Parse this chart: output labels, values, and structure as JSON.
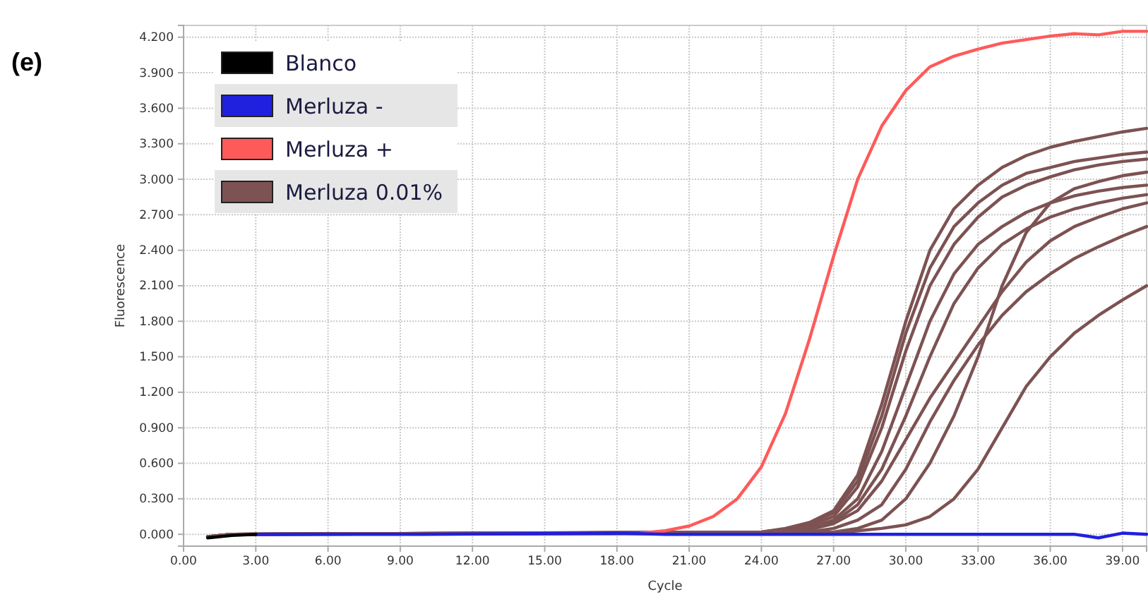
{
  "chart_data": {
    "type": "line",
    "title": "(e)",
    "xlabel": "Cycle",
    "ylabel": "Fluorescence",
    "xlim": [
      0,
      40
    ],
    "ylim": [
      -0.1,
      4.3
    ],
    "xticks": [
      {
        "value": 0,
        "label": "0.00"
      },
      {
        "value": 3,
        "label": "3.00"
      },
      {
        "value": 6,
        "label": "6.00"
      },
      {
        "value": 9,
        "label": "9.00"
      },
      {
        "value": 12,
        "label": "12.00"
      },
      {
        "value": 15,
        "label": "15.00"
      },
      {
        "value": 18,
        "label": "18.00"
      },
      {
        "value": 21,
        "label": "21.00"
      },
      {
        "value": 24,
        "label": "24.00"
      },
      {
        "value": 27,
        "label": "27.00"
      },
      {
        "value": 30,
        "label": "30.00"
      },
      {
        "value": 33,
        "label": "33.00"
      },
      {
        "value": 36,
        "label": "36.00"
      },
      {
        "value": 39,
        "label": "39.00"
      }
    ],
    "yticks": [
      {
        "value": 0,
        "label": "0.000"
      },
      {
        "value": 0.3,
        "label": "0.300"
      },
      {
        "value": 0.6,
        "label": "0.600"
      },
      {
        "value": 0.9,
        "label": "0.900"
      },
      {
        "value": 1.2,
        "label": "1.200"
      },
      {
        "value": 1.5,
        "label": "1.500"
      },
      {
        "value": 1.8,
        "label": "1.800"
      },
      {
        "value": 2.1,
        "label": "2.100"
      },
      {
        "value": 2.4,
        "label": "2.400"
      },
      {
        "value": 2.7,
        "label": "2.700"
      },
      {
        "value": 3.0,
        "label": "3.000"
      },
      {
        "value": 3.3,
        "label": "3.300"
      },
      {
        "value": 3.6,
        "label": "3.600"
      },
      {
        "value": 3.9,
        "label": "3.900"
      },
      {
        "value": 4.2,
        "label": "4.200"
      }
    ],
    "grid": true,
    "legend": "top left",
    "marker": "none",
    "line_style": "solid",
    "series": [
      {
        "name": "Blanco",
        "color": "#000000",
        "x": [
          1,
          2,
          3
        ],
        "values": [
          -0.03,
          -0.01,
          0
        ]
      },
      {
        "name": "Merluza -",
        "color": "#2020e0",
        "x": [
          3,
          10,
          18,
          20,
          30,
          37,
          38,
          39,
          40
        ],
        "values": [
          0,
          0,
          0.01,
          0,
          0,
          0,
          -0.03,
          0.01,
          0
        ]
      },
      {
        "name": "Merluza +",
        "color": "#ff5a5a",
        "x": [
          19,
          20,
          21,
          22,
          23,
          24,
          25,
          26,
          27,
          28,
          29,
          30,
          31,
          32,
          33,
          34,
          35,
          36,
          37,
          38,
          39,
          40
        ],
        "values": [
          0.01,
          0.03,
          0.07,
          0.15,
          0.3,
          0.57,
          1.02,
          1.65,
          2.35,
          3.0,
          3.45,
          3.75,
          3.95,
          4.04,
          4.1,
          4.15,
          4.18,
          4.21,
          4.23,
          4.22,
          4.25,
          4.25
        ]
      },
      {
        "name": "Merluza 0.01%",
        "color": "#7d5252",
        "x": [
          1,
          2,
          24,
          25,
          26,
          27,
          28,
          29,
          30,
          31,
          32,
          33,
          34,
          35,
          36,
          37,
          38,
          39,
          40
        ],
        "values": [
          -0.02,
          0,
          0.02,
          0.05,
          0.1,
          0.2,
          0.5,
          1.1,
          1.8,
          2.4,
          2.75,
          2.95,
          3.1,
          3.2,
          3.27,
          3.32,
          3.36,
          3.4,
          3.43
        ]
      },
      {
        "color": "#7d5252",
        "x": [
          1,
          2,
          24,
          25,
          26,
          27,
          28,
          29,
          30,
          31,
          32,
          33,
          34,
          35,
          36,
          37,
          38,
          39,
          40
        ],
        "values": [
          -0.02,
          0,
          0.02,
          0.04,
          0.09,
          0.18,
          0.45,
          1.0,
          1.7,
          2.25,
          2.6,
          2.8,
          2.95,
          3.05,
          3.1,
          3.15,
          3.18,
          3.21,
          3.23
        ]
      },
      {
        "color": "#7d5252",
        "x": [
          1,
          2,
          24,
          25,
          26,
          27,
          28,
          29,
          30,
          31,
          32,
          33,
          34,
          35,
          36,
          37,
          38,
          39,
          40
        ],
        "values": [
          -0.02,
          0,
          0.01,
          0.03,
          0.07,
          0.15,
          0.4,
          0.9,
          1.55,
          2.1,
          2.45,
          2.68,
          2.85,
          2.95,
          3.02,
          3.08,
          3.12,
          3.15,
          3.17
        ]
      },
      {
        "color": "#7d5252",
        "x": [
          1,
          2,
          24,
          25,
          26,
          27,
          28,
          29,
          30,
          31,
          32,
          33,
          34,
          35,
          36,
          37,
          38,
          39,
          40
        ],
        "values": [
          -0.02,
          0,
          0.01,
          0.02,
          0.05,
          0.12,
          0.3,
          0.7,
          1.25,
          1.8,
          2.2,
          2.45,
          2.6,
          2.72,
          2.8,
          2.86,
          2.9,
          2.93,
          2.95
        ]
      },
      {
        "color": "#7d5252",
        "x": [
          1,
          2,
          25,
          26,
          27,
          28,
          29,
          30,
          31,
          32,
          33,
          34,
          35,
          36,
          37,
          38,
          39,
          40
        ],
        "values": [
          -0.02,
          0,
          0.02,
          0.05,
          0.1,
          0.25,
          0.55,
          1.0,
          1.5,
          1.95,
          2.25,
          2.45,
          2.58,
          2.68,
          2.75,
          2.8,
          2.84,
          2.87
        ]
      },
      {
        "color": "#7d5252",
        "x": [
          1,
          2,
          25,
          26,
          27,
          28,
          29,
          30,
          31,
          32,
          33,
          34,
          35,
          36,
          37,
          38,
          39,
          40
        ],
        "values": [
          -0.02,
          0,
          0.01,
          0.04,
          0.09,
          0.2,
          0.45,
          0.8,
          1.15,
          1.45,
          1.75,
          2.05,
          2.3,
          2.48,
          2.6,
          2.68,
          2.75,
          2.8
        ]
      },
      {
        "color": "#7d5252",
        "x": [
          1,
          2,
          26,
          27,
          28,
          29,
          30,
          31,
          32,
          33,
          34,
          35,
          36,
          37,
          38,
          39,
          40
        ],
        "values": [
          -0.02,
          0,
          0.02,
          0.05,
          0.12,
          0.25,
          0.55,
          0.95,
          1.3,
          1.6,
          1.85,
          2.05,
          2.2,
          2.33,
          2.43,
          2.52,
          2.6
        ]
      },
      {
        "color": "#7d5252",
        "x": [
          1,
          2,
          27,
          28,
          29,
          30,
          31,
          32,
          33,
          34,
          35,
          36,
          37,
          38,
          39,
          40
        ],
        "values": [
          -0.02,
          0,
          0.02,
          0.05,
          0.12,
          0.3,
          0.6,
          1.0,
          1.5,
          2.1,
          2.55,
          2.8,
          2.92,
          2.98,
          3.03,
          3.06
        ]
      },
      {
        "color": "#7d5252",
        "x": [
          1,
          2,
          27,
          28,
          29,
          30,
          31,
          32,
          33,
          34,
          35,
          36,
          37,
          38,
          39,
          40
        ],
        "values": [
          -0.02,
          0,
          0.01,
          0.03,
          0.05,
          0.08,
          0.15,
          0.3,
          0.55,
          0.9,
          1.25,
          1.5,
          1.7,
          1.85,
          1.98,
          2.1
        ]
      }
    ]
  }
}
